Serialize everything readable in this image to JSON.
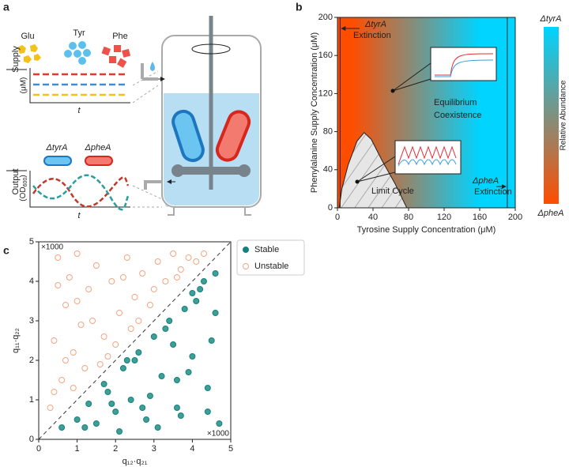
{
  "panel_labels": [
    "a",
    "b",
    "c"
  ],
  "schematic": {
    "nutrients": [
      "Glu",
      "Tyr",
      "Phe"
    ],
    "supply_label": "Supply",
    "supply_unit": "(μM)",
    "time_label": "t",
    "output_label": "Output",
    "strains": [
      "ΔtyrA",
      "ΔpheA"
    ],
    "output_unit": {
      "open": "(OD",
      "sub": "600",
      "close": ")"
    },
    "output_time_label": "t"
  },
  "chart_data": [
    {
      "type": "heatmap",
      "xlabel": "Tyrosine Supply Concentration (μM)",
      "ylabel": "Phenylalanine Supply Concentration (μM)",
      "xlim": [
        0,
        200
      ],
      "xticks": [
        0,
        40,
        80,
        120,
        160,
        200
      ],
      "ylim": [
        0,
        200
      ],
      "yticks": [
        0,
        40,
        80,
        120,
        160,
        200
      ],
      "colors": [
        "#ff4d00",
        "#00d4ff"
      ],
      "colorbar": {
        "label": "Relative Abundance",
        "top": "ΔtyrA",
        "bottom": "ΔpheA"
      },
      "tyrA_extinction_x": 3,
      "pheA_extinction_x": 191,
      "limit_cycle_region": {
        "x": [
          2,
          5,
          12,
          22,
          30,
          38,
          50,
          65,
          78
        ],
        "y": [
          0,
          20,
          45,
          70,
          79,
          72,
          50,
          25,
          0
        ]
      },
      "annotations": [
        "ΔtyrA",
        "Extinction",
        "Equilibrium",
        "Coexistence",
        "Limit Cycle",
        "ΔpheA",
        "Extinction"
      ]
    },
    {
      "type": "scatter",
      "xlabel": "q₁₂·q₂₁",
      "ylabel": "q₁₁·q₂₂",
      "xlim": [
        0,
        5
      ],
      "xticks": [
        0,
        1,
        2,
        3,
        4,
        5
      ],
      "ylim": [
        0,
        5
      ],
      "yticks": [
        0,
        1,
        2,
        3,
        4,
        5
      ],
      "x_multiplier": "×1000",
      "y_multiplier": "×1000",
      "series": [
        {
          "name": "Stable",
          "color": "#12847c",
          "x": [
            0.6,
            1.0,
            1.3,
            1.5,
            1.8,
            2.0,
            2.2,
            2.4,
            2.6,
            2.8,
            3.0,
            3.2,
            3.4,
            3.6,
            3.8,
            4.0,
            4.2,
            4.4,
            4.6,
            4.7,
            1.2,
            1.7,
            2.1,
            2.5,
            2.9,
            3.3,
            3.7,
            4.1,
            4.5,
            3.1,
            3.9,
            4.3,
            2.3,
            2.7,
            3.5,
            4.6,
            1.9,
            4.0,
            4.4,
            3.6
          ],
          "y": [
            0.3,
            0.5,
            0.9,
            0.4,
            1.2,
            0.7,
            1.8,
            1.0,
            2.2,
            0.5,
            2.6,
            1.6,
            3.0,
            0.8,
            3.3,
            2.1,
            3.8,
            1.3,
            4.2,
            0.4,
            0.3,
            1.4,
            0.2,
            2.0,
            1.1,
            2.8,
            0.6,
            3.5,
            2.5,
            0.3,
            1.7,
            4.0,
            2.0,
            0.8,
            2.4,
            3.2,
            0.9,
            3.7,
            0.7,
            1.5
          ]
        },
        {
          "name": "Unstable",
          "color": "#f4a582",
          "x": [
            0.3,
            0.4,
            0.5,
            0.6,
            0.7,
            0.8,
            0.9,
            1.0,
            1.2,
            1.4,
            1.5,
            1.7,
            1.9,
            2.1,
            2.3,
            2.5,
            2.7,
            2.9,
            3.1,
            3.3,
            3.5,
            3.7,
            3.9,
            4.1,
            4.3,
            0.5,
            1.1,
            1.6,
            2.0,
            2.6,
            3.0,
            0.4,
            0.9,
            1.3,
            1.8,
            2.2,
            0.7,
            1.0,
            2.4,
            3.6
          ],
          "y": [
            0.8,
            2.5,
            4.6,
            1.5,
            3.4,
            4.1,
            2.2,
            4.7,
            1.8,
            3.0,
            4.4,
            2.6,
            4.0,
            3.2,
            4.6,
            3.6,
            4.2,
            3.4,
            4.5,
            4.0,
            4.7,
            4.3,
            4.6,
            4.5,
            4.7,
            3.9,
            2.9,
            1.9,
            2.4,
            3.0,
            3.8,
            1.2,
            1.3,
            3.8,
            2.1,
            4.1,
            2.0,
            3.5,
            2.8,
            4.1
          ]
        }
      ]
    }
  ]
}
